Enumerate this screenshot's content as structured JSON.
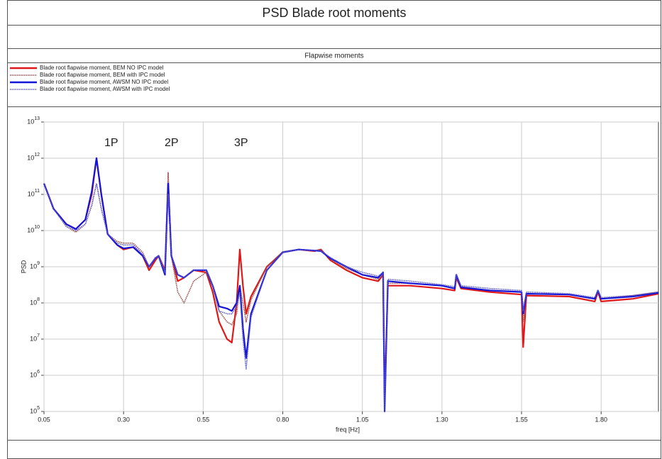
{
  "chart_data": {
    "type": "line",
    "title": "PSD Blade root moments",
    "subtitle": "Flapwise moments",
    "x_label": "freq [Hz]",
    "y_label": "PSD",
    "log_y": true,
    "grid": true,
    "legend": "top-left",
    "annotations": [
      "1P",
      "2P",
      "3P"
    ],
    "xlim": [
      0.05,
      1.98
    ],
    "ylim": [
      100000.0,
      10000000000000.0
    ],
    "xticks": [
      0.05,
      {
        "value": 0.3,
        "label": "0.30"
      },
      0.55,
      {
        "value": 0.8,
        "label": "0.80"
      },
      1.05,
      {
        "value": 1.3,
        "label": "1.30"
      },
      1.55,
      {
        "value": 1.8,
        "label": "1.80"
      }
    ],
    "yticks": [
      {
        "value": 100000.0,
        "label": "10^5"
      },
      {
        "value": 1000000.0,
        "label": "10^6"
      },
      {
        "value": 10000000.0,
        "label": "10^7"
      },
      {
        "value": 100000000.0,
        "label": "10^8"
      },
      {
        "value": 1000000000.0,
        "label": "10^9"
      },
      {
        "value": 10000000000.0,
        "label": "10^10"
      },
      {
        "value": 100000000000.0,
        "label": "10^11"
      },
      {
        "value": 1000000000000.0,
        "label": "10^12"
      },
      {
        "value": 10000000000000.0,
        "label": "10^13"
      }
    ],
    "x": [
      0.05,
      0.08,
      0.12,
      0.15,
      0.18,
      0.2,
      0.215,
      0.23,
      0.25,
      0.28,
      0.3,
      0.33,
      0.36,
      0.38,
      0.4,
      0.41,
      0.43,
      0.44,
      0.45,
      0.47,
      0.49,
      0.52,
      0.56,
      0.58,
      0.6,
      0.625,
      0.64,
      0.655,
      0.665,
      0.675,
      0.685,
      0.7,
      0.75,
      0.8,
      0.85,
      0.9,
      0.92,
      0.95,
      1.0,
      1.05,
      1.1,
      1.115,
      1.12,
      1.13,
      1.2,
      1.3,
      1.34,
      1.345,
      1.36,
      1.45,
      1.55,
      1.555,
      1.565,
      1.7,
      1.78,
      1.79,
      1.8,
      1.9,
      1.98
    ],
    "series": [
      {
        "name": "Blade root flapwise moment, BEM NO IPC model",
        "color": "#e01818",
        "dashed": false,
        "values": [
          200000000000.0,
          40000000000.0,
          15000000000.0,
          11000000000.0,
          20000000000.0,
          100000000000.0,
          1000000000000.0,
          100000000000.0,
          8000000000.0,
          4000000000.0,
          3000000000.0,
          3500000000.0,
          2000000000.0,
          800000000.0,
          1500000000.0,
          2000000000.0,
          800000000.0,
          200000000000.0,
          2000000000.0,
          400000000.0,
          500000000.0,
          800000000.0,
          700000000.0,
          200000000.0,
          30000000.0,
          10000000.0,
          8000000.0,
          100000000.0,
          3000000000.0,
          300000000.0,
          50000000.0,
          150000000.0,
          1000000000.0,
          2500000000.0,
          3000000000.0,
          2700000000.0,
          3000000000.0,
          1500000000.0,
          800000000.0,
          500000000.0,
          400000000.0,
          600000000.0,
          200000.0,
          300000000.0,
          300000000.0,
          250000000.0,
          220000000.0,
          500000000.0,
          250000000.0,
          200000000.0,
          170000000.0,
          6000000.0,
          160000000.0,
          150000000.0,
          110000000.0,
          200000000.0,
          110000000.0,
          130000000.0,
          180000000.0
        ]
      },
      {
        "name": "Blade root flapwise moment, BEM with IPC model",
        "color": "#9a4a4a",
        "dashed": true,
        "values": [
          200000000000.0,
          40000000000.0,
          13000000000.0,
          9000000000.0,
          15000000000.0,
          50000000000.0,
          200000000000.0,
          40000000000.0,
          8000000000.0,
          5000000000.0,
          4500000000.0,
          4500000000.0,
          2500000000.0,
          1000000000.0,
          1800000000.0,
          2000000000.0,
          800000000.0,
          400000000000.0,
          2000000000.0,
          200000000.0,
          100000000.0,
          400000000.0,
          700000000.0,
          300000000.0,
          60000000.0,
          30000000.0,
          25000000.0,
          50000000.0,
          300000000.0,
          100000000.0,
          30000000.0,
          120000000.0,
          1000000000.0,
          2600000000.0,
          3000000000.0,
          2800000000.0,
          3000000000.0,
          1600000000.0,
          900000000.0,
          600000000.0,
          450000000.0,
          600000000.0,
          300000.0,
          350000000.0,
          350000000.0,
          300000000.0,
          250000000.0,
          500000000.0,
          280000000.0,
          220000000.0,
          200000000.0,
          30000000.0,
          180000000.0,
          170000000.0,
          130000000.0,
          200000000.0,
          130000000.0,
          160000000.0,
          200000000.0
        ]
      },
      {
        "name": "Blade root flapwise moment, AWSM NO IPC model",
        "color": "#1414d8",
        "dashed": false,
        "values": [
          200000000000.0,
          40000000000.0,
          15000000000.0,
          11000000000.0,
          20000000000.0,
          120000000000.0,
          1000000000000.0,
          100000000000.0,
          8000000000.0,
          4000000000.0,
          3200000000.0,
          3500000000.0,
          2000000000.0,
          1000000000.0,
          1700000000.0,
          2000000000.0,
          600000000.0,
          200000000000.0,
          2000000000.0,
          600000000.0,
          500000000.0,
          800000000.0,
          800000000.0,
          300000000.0,
          80000000.0,
          70000000.0,
          60000000.0,
          100000000.0,
          300000000.0,
          20000000.0,
          3000000.0,
          50000000.0,
          800000000.0,
          2500000000.0,
          3000000000.0,
          2800000000.0,
          2700000000.0,
          1700000000.0,
          1000000000.0,
          600000000.0,
          500000000.0,
          700000000.0,
          100000.0,
          400000000.0,
          350000000.0,
          300000000.0,
          250000000.0,
          600000000.0,
          270000000.0,
          220000000.0,
          200000000.0,
          50000000.0,
          180000000.0,
          170000000.0,
          130000000.0,
          220000000.0,
          130000000.0,
          150000000.0,
          190000000.0
        ]
      },
      {
        "name": "Blade root flapwise moment, AWSM with IPC model",
        "color": "#5a5ad0",
        "dashed": true,
        "values": [
          200000000000.0,
          40000000000.0,
          13000000000.0,
          10000000000.0,
          15000000000.0,
          50000000000.0,
          200000000000.0,
          40000000000.0,
          8000000000.0,
          4500000000.0,
          4000000000.0,
          4000000000.0,
          2200000000.0,
          1000000000.0,
          1700000000.0,
          2000000000.0,
          700000000.0,
          100000000000.0,
          2000000000.0,
          600000000.0,
          500000000.0,
          800000000.0,
          800000000.0,
          300000000.0,
          60000000.0,
          50000000.0,
          50000000.0,
          80000000.0,
          200000000.0,
          10000000.0,
          1500000.0,
          40000000.0,
          800000000.0,
          2500000000.0,
          3000000000.0,
          2800000000.0,
          2700000000.0,
          1800000000.0,
          1000000000.0,
          700000000.0,
          550000000.0,
          700000000.0,
          100000.0,
          450000000.0,
          400000000.0,
          320000000.0,
          280000000.0,
          600000000.0,
          300000000.0,
          250000000.0,
          220000000.0,
          60000000.0,
          200000000.0,
          180000000.0,
          140000000.0,
          220000000.0,
          140000000.0,
          160000000.0,
          200000000.0
        ]
      }
    ]
  }
}
